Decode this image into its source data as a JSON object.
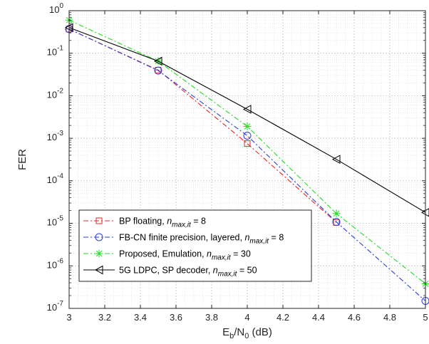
{
  "chart_data": {
    "type": "line",
    "xlabel": {
      "base": "E",
      "sub1": "b",
      "mid": "/N",
      "sub2": "0",
      "tail": " (dB)"
    },
    "ylabel": "FER",
    "xlim": [
      3,
      5
    ],
    "ylim": [
      1e-07,
      1
    ],
    "y_scale": "log",
    "grid": true,
    "minor_grid": true,
    "x_ticks": [
      "3",
      "3.2",
      "3.4",
      "3.6",
      "3.8",
      "4",
      "4.2",
      "4.4",
      "4.6",
      "4.8",
      "5"
    ],
    "y_tick_exponents": [
      "0",
      "-1",
      "-2",
      "-3",
      "-4",
      "-5",
      "-6",
      "-7"
    ],
    "legend_position": "bottom-left",
    "series": [
      {
        "name": "BP floating,",
        "n_label": "n",
        "n_sub": "max,it",
        "n_value": " = 8",
        "color": "#e8262b",
        "dash": "dashdot",
        "marker": "square",
        "x": [
          3,
          3.5,
          4,
          4.5
        ],
        "y": [
          0.37,
          0.04,
          0.00075,
          1.05e-05
        ]
      },
      {
        "name": "FB-CN finite precision, layered,",
        "n_label": "n",
        "n_sub": "max,it",
        "n_value": " = 8",
        "color": "#2a3fd6",
        "dash": "dashdot",
        "marker": "circle",
        "x": [
          3,
          3.5,
          4,
          4.5,
          5
        ],
        "y": [
          0.37,
          0.039,
          0.00115,
          1.08e-05,
          1.5e-07
        ]
      },
      {
        "name": "Proposed, Emulation,",
        "n_label": "n",
        "n_sub": "max,it",
        "n_value": " = 30",
        "color": "#22dd22",
        "dash": "dashdot",
        "marker": "asterisk",
        "x": [
          3,
          3.5,
          4,
          4.5,
          5
        ],
        "y": [
          0.6,
          0.065,
          0.0019,
          1.7e-05,
          3.8e-07
        ]
      },
      {
        "name": "5G LDPC, SP decoder,",
        "n_label": "n",
        "n_sub": "max,it",
        "n_value": " = 50",
        "color": "#000000",
        "dash": "solid",
        "marker": "triangle-left",
        "x": [
          3,
          3.5,
          4,
          4.5,
          5
        ],
        "y": [
          0.4,
          0.065,
          0.0048,
          0.00032,
          1.8e-05
        ]
      }
    ]
  }
}
